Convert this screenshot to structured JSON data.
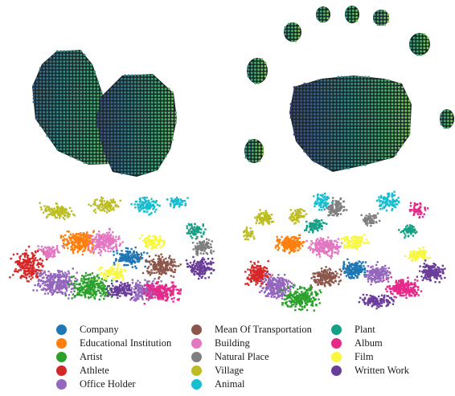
{
  "chart_data": [
    {
      "type": "scatter",
      "panel": "top-left",
      "description_free": true,
      "grid": false,
      "points_color_scale": [
        "#46307a",
        "#3a5a92",
        "#2f8a8a",
        "#3fae6e",
        "#8fd14a"
      ]
    },
    {
      "type": "scatter",
      "panel": "top-right",
      "grid": false,
      "points_color_scale": [
        "#46307a",
        "#3a5a92",
        "#2f8a8a",
        "#3fae6e",
        "#8fd14a"
      ]
    },
    {
      "type": "scatter",
      "panel": "bottom-left",
      "grid": false
    },
    {
      "type": "scatter",
      "panel": "bottom-right",
      "grid": false
    }
  ],
  "legend": {
    "placement": "bottom",
    "columns": 3,
    "items": [
      {
        "label": "Company",
        "color": "#1f77b4"
      },
      {
        "label": "Educational Institution",
        "color": "#ff7f0e"
      },
      {
        "label": "Artist",
        "color": "#2ca02c"
      },
      {
        "label": "Athlete",
        "color": "#d62728"
      },
      {
        "label": "Office Holder",
        "color": "#9467bd"
      },
      {
        "label": "Mean Of Transportation",
        "color": "#8c564b"
      },
      {
        "label": "Building",
        "color": "#e377c2"
      },
      {
        "label": "Natural Place",
        "color": "#7f7f7f"
      },
      {
        "label": "Village",
        "color": "#bcbd22"
      },
      {
        "label": "Animal",
        "color": "#17becf"
      },
      {
        "label": "Plant",
        "color": "#16a085"
      },
      {
        "label": "Album",
        "color": "#e7298a"
      },
      {
        "label": "Film",
        "color": "#f7f740"
      },
      {
        "label": "Written Work",
        "color": "#6a3d9a"
      }
    ]
  }
}
